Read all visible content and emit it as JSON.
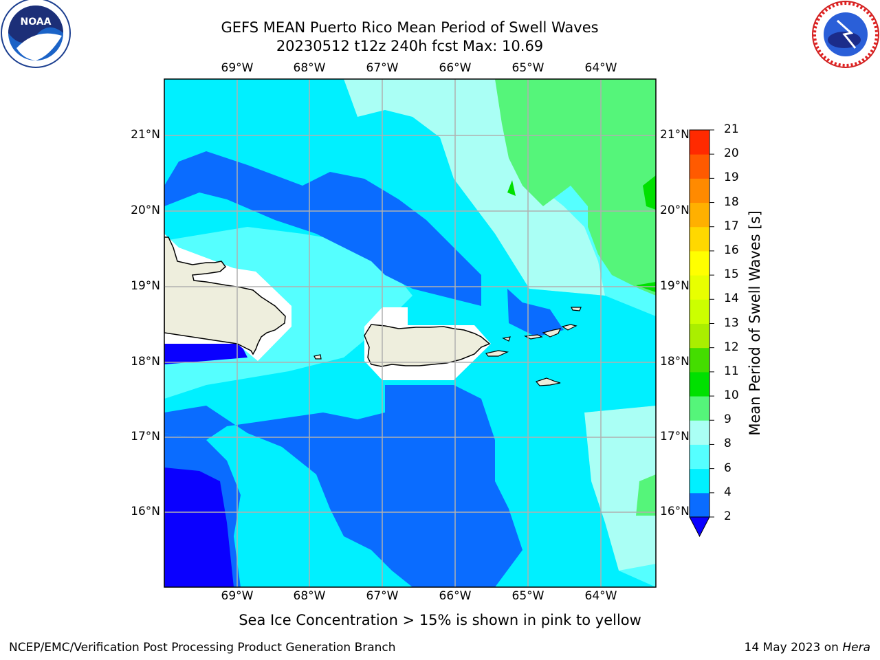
{
  "title_line1": "GEFS MEAN Puerto Rico Mean Period of Swell Waves",
  "title_line2": "20230512 t12z 240h fcst   Max: 10.69",
  "logos": {
    "left": "noaa-logo",
    "right": "national-weather-service-logo"
  },
  "logo_text": {
    "noaa": "NOAA",
    "nws": "NATIONAL WEATHER SERVICE"
  },
  "lon_labels": [
    "69°W",
    "68°W",
    "67°W",
    "66°W",
    "65°W",
    "64°W"
  ],
  "lat_labels": [
    "21°N",
    "20°N",
    "19°N",
    "18°N",
    "17°N",
    "16°N"
  ],
  "colorbar": {
    "title": "Mean Period of Swell Waves [s]",
    "ticks": [
      "2",
      "4",
      "6",
      "8",
      "9",
      "10",
      "11",
      "12",
      "13",
      "14",
      "15",
      "16",
      "17",
      "18",
      "19",
      "20",
      "21"
    ],
    "colors": [
      "#0a6cff",
      "#00f0ff",
      "#55ffff",
      "#aafff5",
      "#55f57a",
      "#00e000",
      "#44dd00",
      "#aaee00",
      "#ccff00",
      "#e8ff00",
      "#ffff00",
      "#ffd800",
      "#ffb000",
      "#ff8a00",
      "#ff5a00",
      "#ff2a00"
    ],
    "underflow_color": "#0a00ff"
  },
  "caption": "Sea Ice Concentration > 15% is shown in pink to yellow",
  "footer_left": "NCEP/EMC/Verification Post Processing Product Generation Branch",
  "footer_right_date": "14 May 2023 on",
  "footer_right_host": "Hera",
  "colors": {
    "band_below_2": "#0a00ff",
    "band_2_4": "#0a6cff",
    "band_4_6": "#00f0ff",
    "band_6_8": "#55ffff",
    "band_8_9": "#aafff5",
    "band_9_10": "#55f57a",
    "band_10_11": "#00e000",
    "land": "#eeeedd",
    "masked": "#ffffff",
    "grid": "#b0b0b0"
  }
}
